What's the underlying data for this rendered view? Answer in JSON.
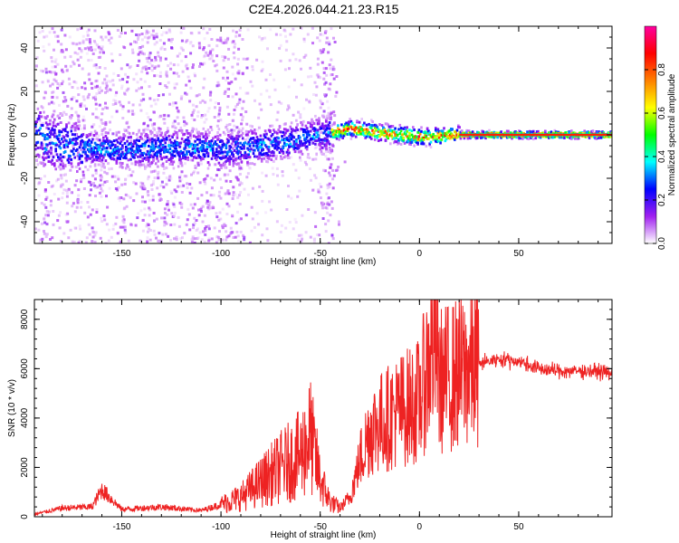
{
  "title": "C2E4.2026.044.21.23.R15",
  "chart_data": [
    {
      "type": "heatmap",
      "xlabel": "Height of straight line (km)",
      "ylabel": "Frequency (Hz)",
      "xlim": [
        -194,
        97
      ],
      "ylim": [
        -50,
        50
      ],
      "xticks": [
        -150,
        -100,
        -50,
        0,
        50
      ],
      "yticks": [
        -40,
        -20,
        0,
        20,
        40
      ],
      "colorbar": {
        "label": "Normalized spectral amplitude",
        "range": [
          0,
          1
        ],
        "ticks": [
          0.0,
          0.2,
          0.4,
          0.6,
          0.8
        ],
        "tick_labels": [
          "0.0",
          "0.2",
          "0.4",
          "0.6",
          "0.8"
        ],
        "colors": [
          "#ffffff",
          "#a020f0",
          "#0000ff",
          "#00ffff",
          "#00ff00",
          "#ffff00",
          "#ff8000",
          "#ff0000",
          "#ff00a0"
        ]
      },
      "ridge": [
        {
          "x": -190,
          "y": -3
        },
        {
          "x": -170,
          "y": -6
        },
        {
          "x": -150,
          "y": -7
        },
        {
          "x": -130,
          "y": -6
        },
        {
          "x": -110,
          "y": -6
        },
        {
          "x": -100,
          "y": -7
        },
        {
          "x": -80,
          "y": -5
        },
        {
          "x": -60,
          "y": -2
        },
        {
          "x": -45,
          "y": 1
        },
        {
          "x": -35,
          "y": 3
        },
        {
          "x": -20,
          "y": 1
        },
        {
          "x": 0,
          "y": -1
        },
        {
          "x": 20,
          "y": 0
        },
        {
          "x": 97,
          "y": 0
        }
      ]
    },
    {
      "type": "line",
      "xlabel": "Height of straight line (km)",
      "ylabel": "SNR (10 * v/v)",
      "xlim": [
        -194,
        97
      ],
      "ylim": [
        0,
        8800
      ],
      "xticks": [
        -150,
        -100,
        -50,
        0,
        50
      ],
      "yticks": [
        0,
        2000,
        4000,
        6000,
        8000
      ],
      "series": [
        {
          "name": "SNR",
          "color": "#ee2222",
          "x": [
            -194,
            -180,
            -165,
            -160,
            -150,
            -130,
            -110,
            -100,
            -90,
            -80,
            -70,
            -60,
            -55,
            -50,
            -45,
            -40,
            -35,
            -30,
            -25,
            -20,
            -10,
            0,
            8,
            10,
            20,
            30,
            40,
            50,
            60,
            70,
            80,
            90,
            97
          ],
          "y": [
            100,
            350,
            400,
            1100,
            300,
            400,
            250,
            500,
            800,
            1400,
            2000,
            2500,
            3300,
            1500,
            600,
            350,
            800,
            2300,
            3500,
            3800,
            4300,
            4700,
            7300,
            5500,
            5800,
            6200,
            6400,
            6300,
            6000,
            5900,
            5900,
            5900,
            5800
          ]
        }
      ]
    }
  ]
}
